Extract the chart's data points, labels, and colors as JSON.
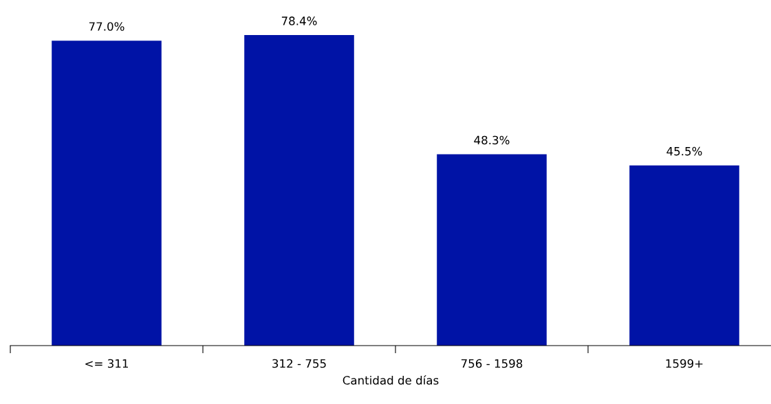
{
  "chart_data": {
    "type": "bar",
    "xlabel": "Cantidad de días",
    "categories": [
      "<= 311",
      "312 - 755",
      "756 - 1598",
      "1599+"
    ],
    "values": [
      77.0,
      78.4,
      48.3,
      45.5
    ],
    "value_labels": [
      "77.0%",
      "78.4%",
      "48.3%",
      "45.5%"
    ],
    "color": "#0013a6",
    "grid": false,
    "legend": false
  }
}
